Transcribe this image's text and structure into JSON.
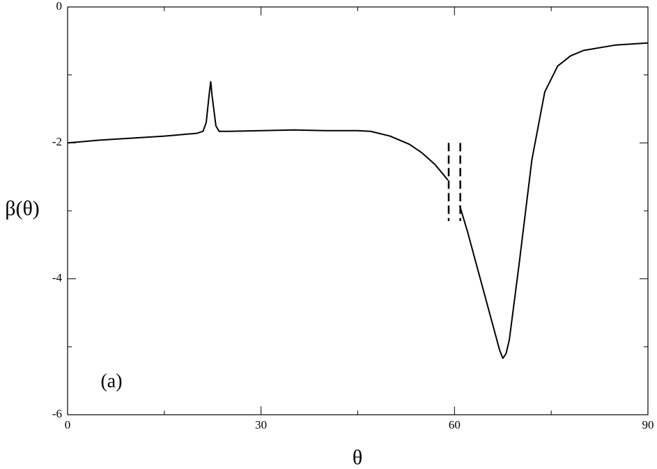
{
  "chart_data": {
    "type": "line",
    "xlabel": "θ",
    "ylabel": "β(θ)",
    "annotation": "(a)",
    "x": [
      0,
      5,
      10,
      15,
      20,
      21,
      21.5,
      22,
      22.2,
      22.4,
      23,
      23.5,
      25,
      30,
      35,
      40,
      45,
      47,
      50,
      53,
      55,
      57,
      59,
      60,
      60.8,
      62,
      64,
      66,
      67,
      67.5,
      68,
      68.5,
      70,
      72,
      74,
      76,
      78,
      80,
      85,
      90
    ],
    "series": [
      {
        "color": "#000000",
        "values": [
          -2.0,
          -1.96,
          -1.93,
          -1.9,
          -1.86,
          -1.83,
          -1.7,
          -1.25,
          -1.1,
          -1.3,
          -1.75,
          -1.83,
          -1.83,
          -1.82,
          -1.81,
          -1.82,
          -1.82,
          -1.83,
          -1.9,
          -2.02,
          -2.15,
          -2.32,
          -2.55,
          null,
          -2.92,
          -3.3,
          -4.0,
          -4.7,
          -5.05,
          -5.17,
          -5.1,
          -4.9,
          -3.8,
          -2.25,
          -1.25,
          -0.87,
          -0.72,
          -0.64,
          -0.56,
          -0.53
        ]
      }
    ],
    "dashed_markers": [
      {
        "x": 59.1,
        "y": [
          -2.0,
          -3.15
        ]
      },
      {
        "x": 60.9,
        "y": [
          -2.0,
          -3.15
        ]
      }
    ],
    "xlim": [
      0,
      90
    ],
    "xticks": [
      0,
      30,
      60,
      90
    ],
    "xminorticks": [
      15,
      45,
      75
    ],
    "ylim": [
      -6,
      0
    ],
    "yticks": [
      -6,
      -4,
      -2,
      0
    ],
    "yminorticks": [
      -5,
      -3,
      -1
    ],
    "grid": false
  }
}
